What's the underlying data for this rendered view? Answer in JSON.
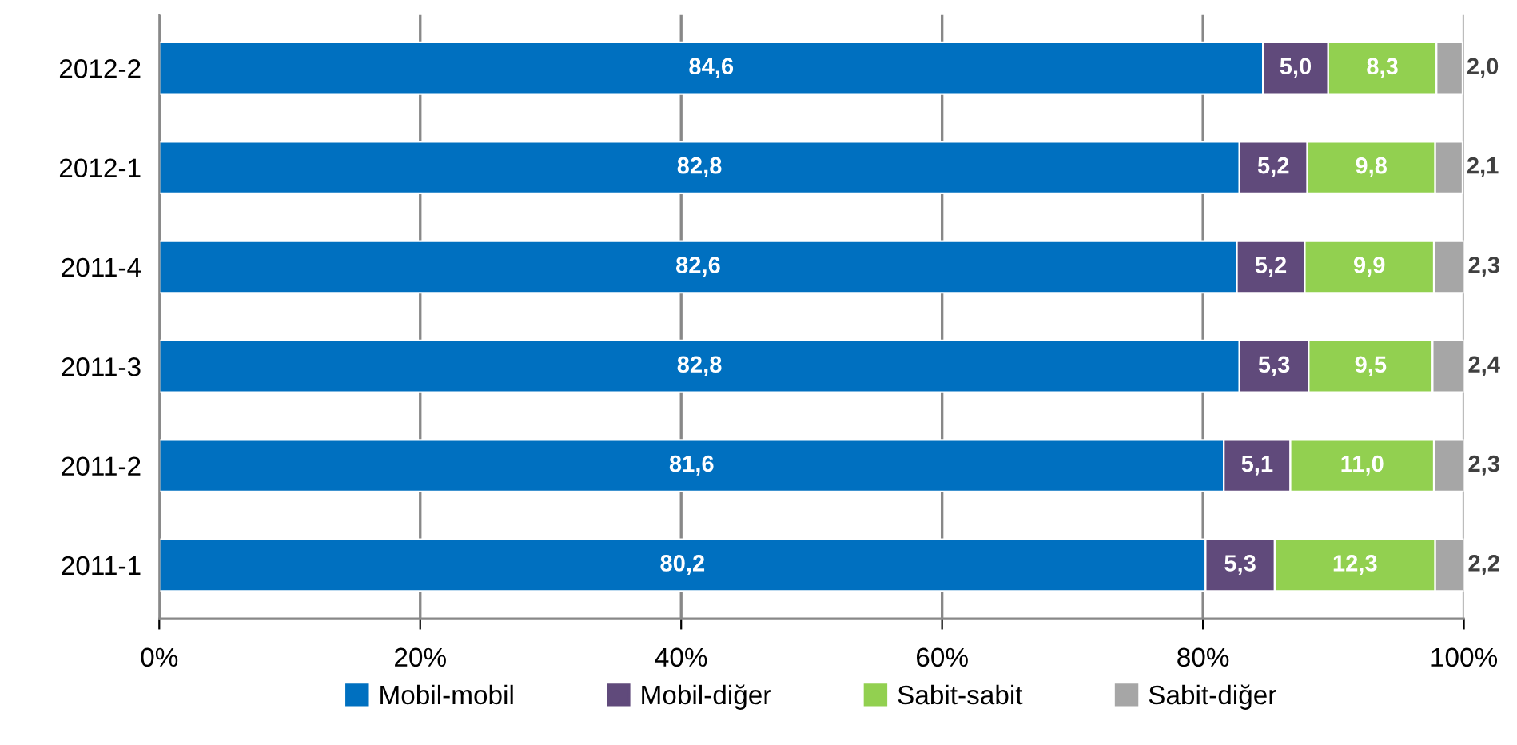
{
  "chart_data": {
    "type": "bar",
    "orientation": "horizontal",
    "stacked": true,
    "categories": [
      "2012-2",
      "2012-1",
      "2011-4",
      "2011-3",
      "2011-2",
      "2011-1"
    ],
    "series": [
      {
        "name": "Mobil-mobil",
        "color": "#0070c0",
        "values": [
          84.6,
          82.8,
          82.6,
          82.8,
          81.6,
          80.2
        ],
        "value_labels": [
          "84,6",
          "82,8",
          "82,6",
          "82,8",
          "81,6",
          "80,2"
        ]
      },
      {
        "name": "Mobil-diğer",
        "color": "#604a7b",
        "values": [
          5.0,
          5.2,
          5.2,
          5.3,
          5.1,
          5.3
        ],
        "value_labels": [
          "5,0",
          "5,2",
          "5,2",
          "5,3",
          "5,1",
          "5,3"
        ]
      },
      {
        "name": "Sabit-sabit",
        "color": "#92d050",
        "values": [
          8.3,
          9.8,
          9.9,
          9.5,
          11.0,
          12.3
        ],
        "value_labels": [
          "8,3",
          "9,8",
          "9,9",
          "9,5",
          "11,0",
          "12,3"
        ]
      },
      {
        "name": "Sabit-diğer",
        "color": "#a6a6a6",
        "values": [
          2.0,
          2.1,
          2.3,
          2.4,
          2.3,
          2.2
        ],
        "value_labels": [
          "2,0",
          "2,1",
          "2,3",
          "2,4",
          "2,3",
          "2,2"
        ]
      }
    ],
    "xlim": [
      0,
      100
    ],
    "xticks": [
      {
        "value": 0,
        "label": "0%"
      },
      {
        "value": 20,
        "label": "20%"
      },
      {
        "value": 40,
        "label": "40%"
      },
      {
        "value": 60,
        "label": "60%"
      },
      {
        "value": 80,
        "label": "80%"
      },
      {
        "value": 100,
        "label": "100%"
      }
    ],
    "grid": "x",
    "legend": "bottom"
  }
}
